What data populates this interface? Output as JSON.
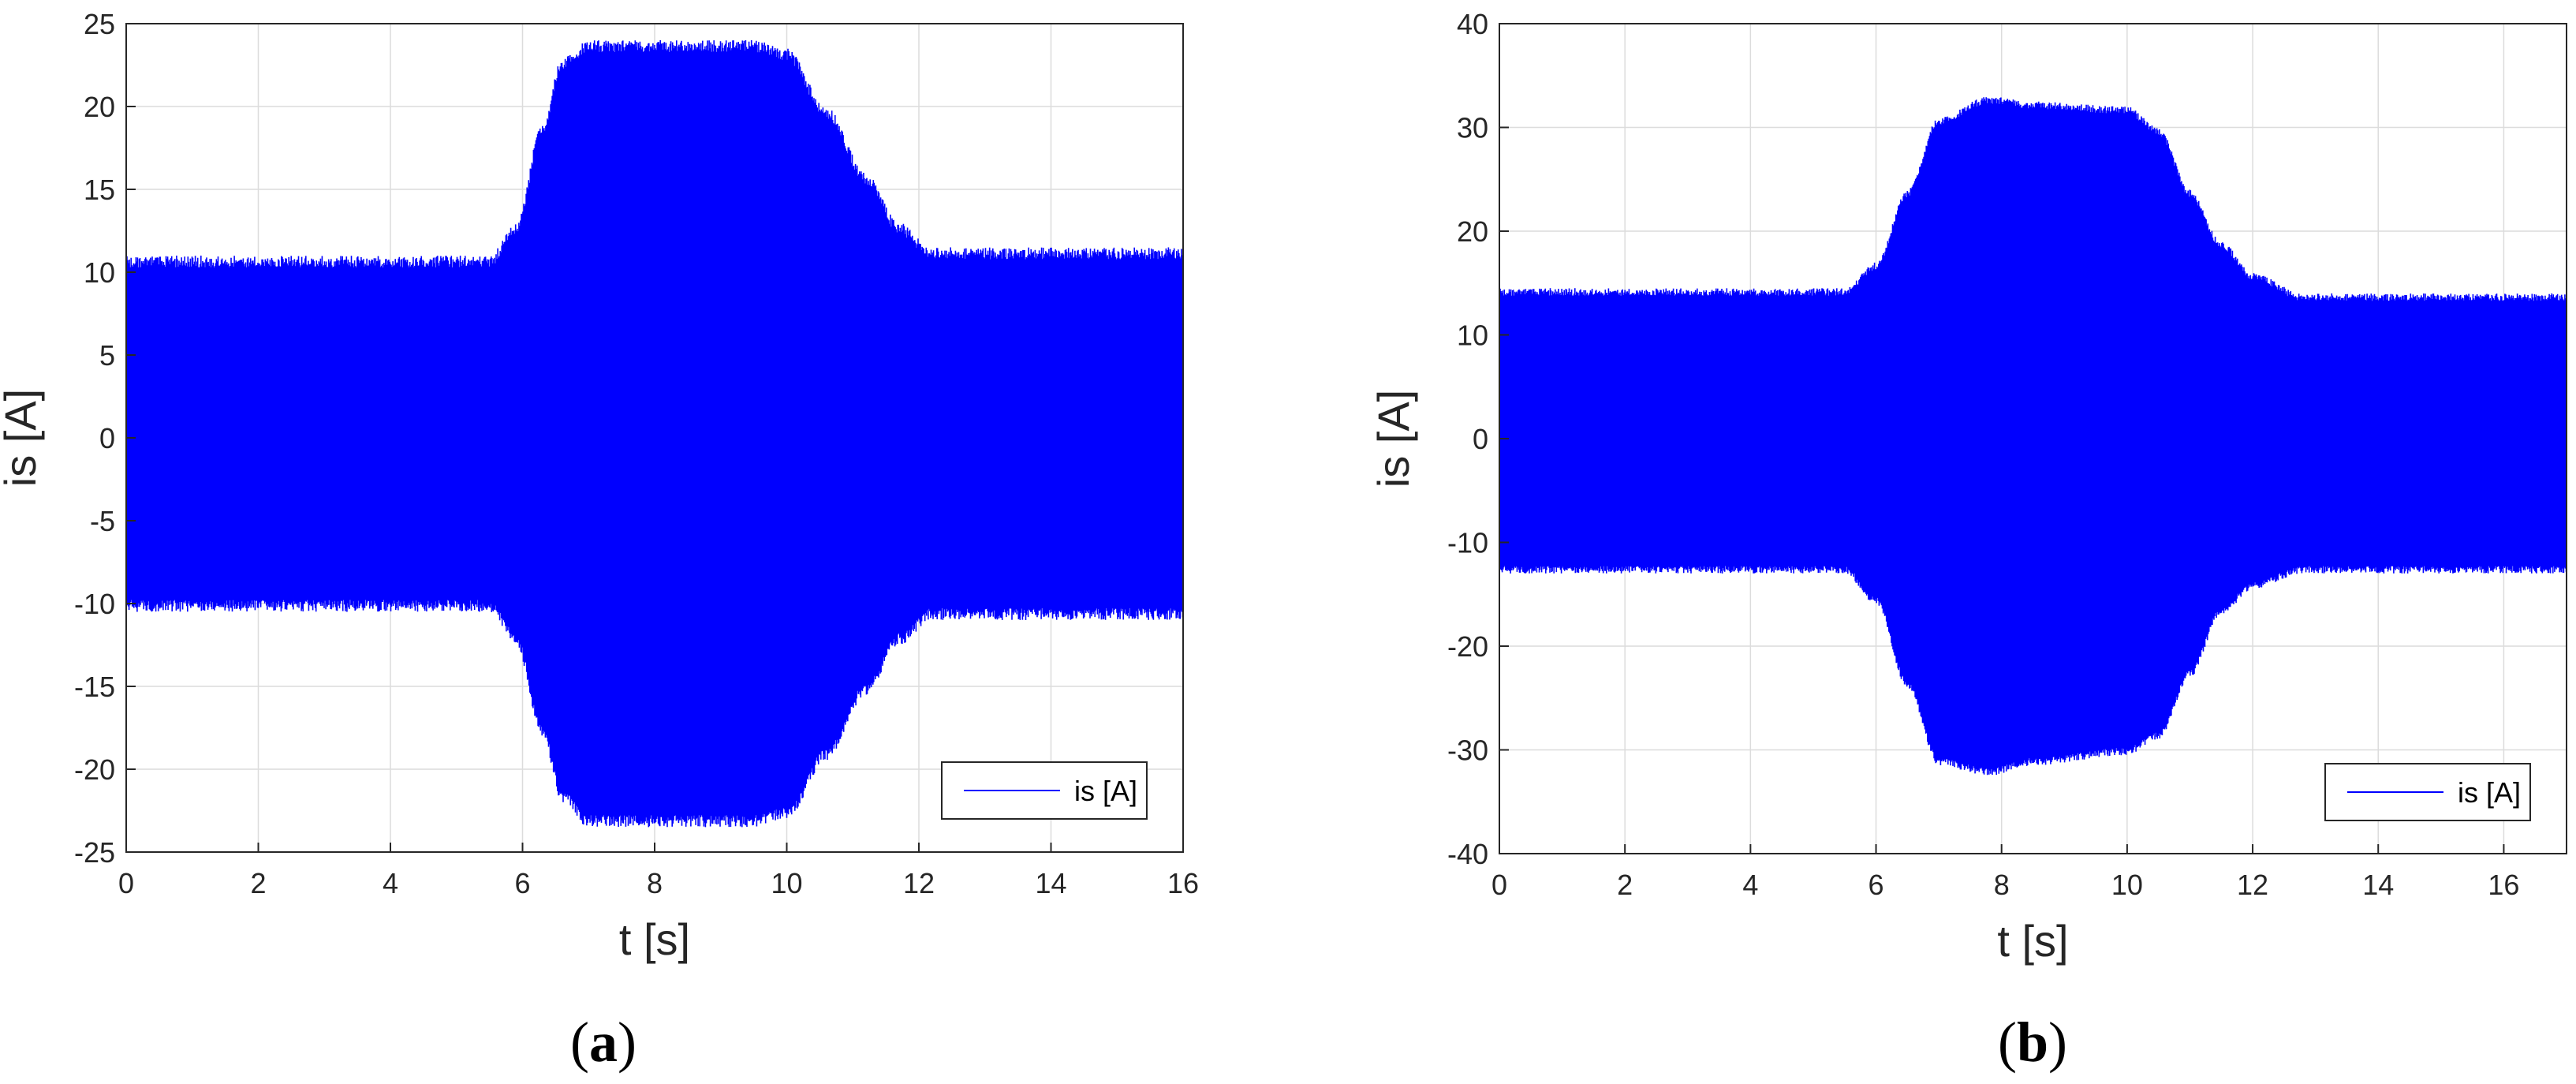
{
  "chart_data": [
    {
      "type": "line",
      "panel_label": "a",
      "xlabel": "t [s]",
      "ylabel": "is [A]",
      "xlim": [
        0,
        16
      ],
      "ylim": [
        -25,
        25
      ],
      "xticks": [
        0,
        2,
        4,
        6,
        8,
        10,
        12,
        14,
        16
      ],
      "yticks": [
        -25,
        -20,
        -15,
        -10,
        -5,
        0,
        5,
        10,
        15,
        20,
        25
      ],
      "grid": true,
      "legend_position": "bottom-right",
      "series": [
        {
          "name": "is [A]",
          "color": "#0000ff",
          "style": "oscillating",
          "upper_envelope": {
            "t": [
              0,
              5.5,
              5.9,
              6.3,
              6.6,
              7.0,
              8.0,
              9.5,
              10.0,
              10.6,
              11.2,
              11.7,
              12.2,
              16
            ],
            "is": [
              11,
              11,
              13,
              19,
              23,
              24,
              24,
              24,
              23.5,
              20,
              16,
              13,
              11.5,
              11.5
            ]
          },
          "lower_envelope": {
            "t": [
              0,
              5.5,
              5.9,
              6.3,
              6.6,
              7.0,
              8.0,
              9.5,
              10.0,
              10.6,
              11.2,
              11.7,
              12.2,
              16
            ],
            "is": [
              -10.5,
              -10.5,
              -12.5,
              -18,
              -22,
              -23.5,
              -23.5,
              -23.5,
              -23,
              -19.5,
              -15.5,
              -12.5,
              -11,
              -11
            ]
          }
        }
      ]
    },
    {
      "type": "line",
      "panel_label": "b",
      "xlabel": "t [s]",
      "ylabel": "is [A]",
      "xlim": [
        0,
        17
      ],
      "ylim": [
        -40,
        40
      ],
      "xticks": [
        0,
        2,
        4,
        6,
        8,
        10,
        12,
        14,
        16
      ],
      "yticks": [
        -40,
        -30,
        -20,
        -10,
        0,
        10,
        20,
        30,
        40
      ],
      "grid": true,
      "legend_position": "bottom-right",
      "series": [
        {
          "name": "is [A]",
          "color": "#0000ff",
          "style": "oscillating",
          "upper_envelope": {
            "t": [
              0,
              5.5,
              6.0,
              6.5,
              7.0,
              7.8,
              8.5,
              10.0,
              10.5,
              11.0,
              11.5,
              12.0,
              12.8,
              17
            ],
            "is": [
              14.5,
              14.5,
              17,
              24,
              31,
              33,
              32.5,
              32,
              30,
              24,
              19,
              16,
              14,
              14
            ]
          },
          "lower_envelope": {
            "t": [
              0,
              5.5,
              6.0,
              6.5,
              7.0,
              7.8,
              8.5,
              10.0,
              10.5,
              11.0,
              11.5,
              12.0,
              12.8,
              17
            ],
            "is": [
              -13,
              -13,
              -16,
              -24,
              -31.5,
              -32.5,
              -31.5,
              -30.5,
              -29,
              -23,
              -17,
              -14.5,
              -13,
              -13
            ]
          }
        }
      ]
    }
  ]
}
